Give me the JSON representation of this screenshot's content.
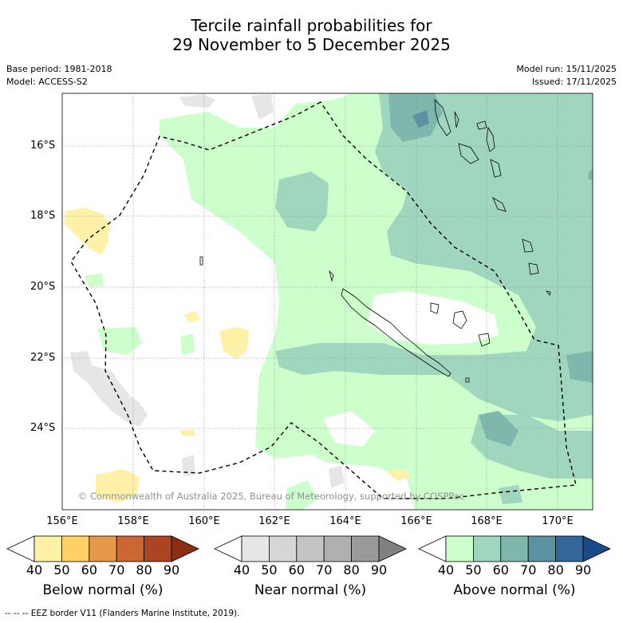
{
  "title": {
    "line1": "Tercile rainfall probabilities for",
    "line2": "29 November to 5 December 2025"
  },
  "meta": {
    "base_period": "Base period: 1981-2018",
    "model": "Model: ACCESS-S2",
    "model_run": "Model run: 15/11/2025",
    "issued": "Issued: 17/11/2025"
  },
  "map": {
    "lat_labels": [
      "16°S",
      "18°S",
      "20°S",
      "22°S",
      "24°S"
    ],
    "lon_labels": [
      "156°E",
      "158°E",
      "160°E",
      "162°E",
      "164°E",
      "166°E",
      "168°E",
      "170°E"
    ],
    "copyright": "© Commonwealth of Australia 2025, Bureau of Meteorology, supported by COSPPac",
    "eez_line": "dashed"
  },
  "legend": {
    "tick_labels": [
      "40",
      "50",
      "60",
      "70",
      "80",
      "90"
    ],
    "below": {
      "title": "Below normal (%)",
      "colors": [
        "#ffffff",
        "#fff2a8",
        "#ffd066",
        "#e5984a",
        "#cc6633",
        "#aa4422",
        "#8c2e14"
      ]
    },
    "near": {
      "title": "Near normal (%)",
      "colors": [
        "#ffffff",
        "#e6e6e6",
        "#d6d6d6",
        "#c4c4c4",
        "#b0b0b0",
        "#9a9a9a",
        "#808080"
      ]
    },
    "above": {
      "title": "Above normal (%)",
      "colors": [
        "#ffffff",
        "#ccffcc",
        "#a0d6be",
        "#7fb7ad",
        "#5c92a2",
        "#336699",
        "#1a4a8a"
      ]
    }
  },
  "footer": "--  --  -- EEZ border V11 (Flanders Marine Institute, 2019)."
}
